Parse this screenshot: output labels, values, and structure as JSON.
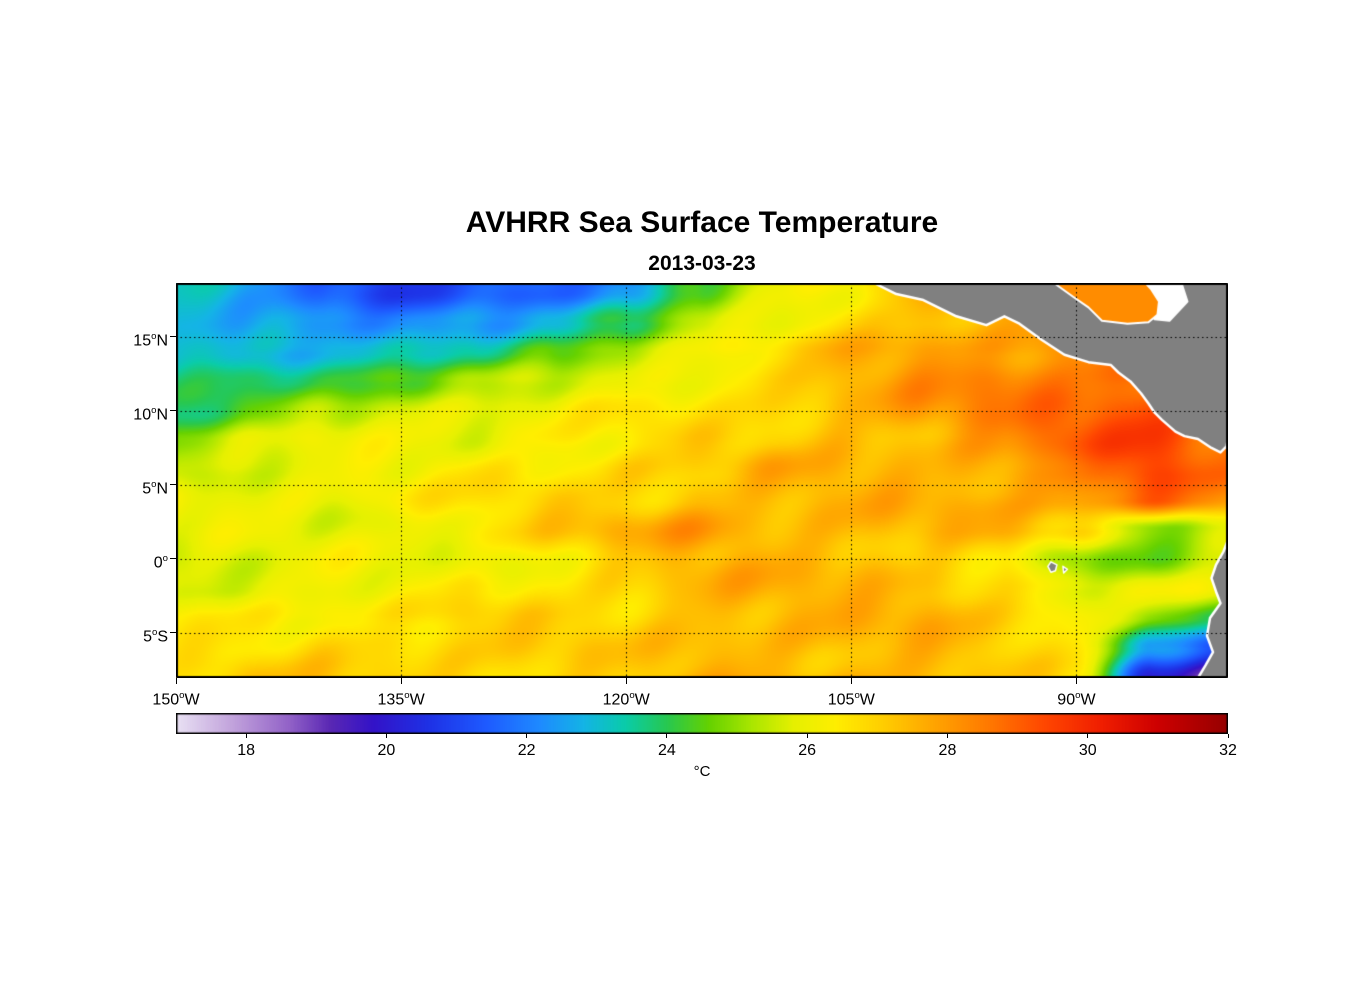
{
  "title": "AVHRR Sea Surface Temperature",
  "subtitle": "2013-03-23",
  "chart_data": {
    "type": "heatmap",
    "title": "AVHRR Sea Surface Temperature",
    "date": "2013-03-23",
    "degree_symbol": "o",
    "lon_range": [
      -150,
      -79.9
    ],
    "lat_range": [
      -8.05,
      18.65
    ],
    "x_ticks": [
      {
        "lon": -150,
        "deg": "150",
        "hemi": "W"
      },
      {
        "lon": -135,
        "deg": "135",
        "hemi": "W"
      },
      {
        "lon": -120,
        "deg": "120",
        "hemi": "W"
      },
      {
        "lon": -105,
        "deg": "105",
        "hemi": "W"
      },
      {
        "lon": -90,
        "deg": "90",
        "hemi": "W"
      }
    ],
    "y_ticks": [
      {
        "lat": 15,
        "deg": "15",
        "hemi": "N"
      },
      {
        "lat": 10,
        "deg": "10",
        "hemi": "N"
      },
      {
        "lat": 5,
        "deg": "5",
        "hemi": "N"
      },
      {
        "lat": 0,
        "deg": "0",
        "hemi": ""
      },
      {
        "lat": -5,
        "deg": "5",
        "hemi": "S"
      }
    ],
    "grid_lines": {
      "lons": [
        -135,
        -120,
        -105,
        -90
      ],
      "lats": [
        15,
        10,
        5,
        0,
        -5
      ]
    },
    "colorbar": {
      "min": 17,
      "max": 32,
      "ticks": [
        18,
        20,
        22,
        24,
        26,
        28,
        30,
        32
      ],
      "label": "°C"
    },
    "colormap_stops": [
      [
        17.0,
        "#E9E1F4"
      ],
      [
        17.8,
        "#C2A3DC"
      ],
      [
        18.6,
        "#9363C8"
      ],
      [
        19.2,
        "#5A28B4"
      ],
      [
        19.8,
        "#3413C8"
      ],
      [
        20.6,
        "#1E32E6"
      ],
      [
        21.4,
        "#1E5AFF"
      ],
      [
        22.2,
        "#1E8CFF"
      ],
      [
        22.8,
        "#14B4E6"
      ],
      [
        23.4,
        "#0ACCAA"
      ],
      [
        24.0,
        "#28C850"
      ],
      [
        24.6,
        "#66D200"
      ],
      [
        25.2,
        "#AAE600"
      ],
      [
        25.8,
        "#E6F000"
      ],
      [
        26.4,
        "#FFEE00"
      ],
      [
        27.0,
        "#FFD200"
      ],
      [
        27.8,
        "#FFA500"
      ],
      [
        28.6,
        "#FF7800"
      ],
      [
        29.4,
        "#FF4600"
      ],
      [
        30.2,
        "#F01E00"
      ],
      [
        31.0,
        "#CD0000"
      ],
      [
        32.0,
        "#960000"
      ]
    ],
    "land_color": "#808080",
    "coast_color": "#FFFFFF",
    "grid": {
      "lons": [
        -150,
        -145,
        -140,
        -135,
        -130,
        -125,
        -120,
        -115,
        -110,
        -105,
        -100,
        -95,
        -90,
        -85,
        -80
      ],
      "lats": [
        18,
        16,
        14,
        12,
        10,
        8,
        6,
        4,
        2,
        0,
        -2,
        -4,
        -6,
        -8
      ],
      "sst": [
        [
          23,
          22.5,
          21.5,
          21,
          21.5,
          21.5,
          22,
          24.5,
          26,
          26.5,
          27.5,
          28,
          28,
          28,
          28
        ],
        [
          23,
          22.5,
          22,
          22,
          22.5,
          23,
          24,
          25.5,
          26,
          27,
          27.5,
          27.5,
          28,
          28,
          28
        ],
        [
          23.5,
          23,
          23,
          23,
          23.5,
          24.5,
          25.5,
          26,
          26.5,
          27.5,
          28,
          28,
          28.5,
          28.5,
          28
        ],
        [
          23.5,
          24,
          24,
          24.5,
          25,
          25.5,
          26,
          26.5,
          27,
          27.5,
          28,
          28.5,
          28.5,
          29,
          28.5
        ],
        [
          23.5,
          24.5,
          25.5,
          26,
          26,
          26,
          26.5,
          26.5,
          27,
          27.5,
          28,
          28.5,
          29,
          29.5,
          29
        ],
        [
          25,
          25.5,
          26,
          26,
          26,
          26.5,
          26.5,
          27,
          27,
          27.5,
          27.5,
          28,
          29,
          29.5,
          28.5
        ],
        [
          25.5,
          26,
          26,
          26,
          26.5,
          26.5,
          27,
          27,
          27.5,
          27.5,
          27.5,
          28,
          28.5,
          29.5,
          28.5
        ],
        [
          26,
          26,
          26,
          26.5,
          26.5,
          27,
          27,
          27.5,
          27.5,
          27.5,
          27.5,
          27.5,
          28,
          29,
          28
        ],
        [
          26,
          26,
          26,
          26,
          26.5,
          27,
          27.5,
          28,
          27.5,
          27.5,
          27.5,
          27.5,
          27,
          25,
          26
        ],
        [
          25.5,
          25.5,
          26,
          26,
          26,
          26.5,
          27,
          27.5,
          27.5,
          27.5,
          27,
          26.5,
          24.5,
          24.5,
          25.5
        ],
        [
          26,
          26,
          26,
          26,
          26.5,
          26.5,
          27,
          27.5,
          27.5,
          27.5,
          27.5,
          27,
          26,
          26,
          26
        ],
        [
          26.5,
          26.5,
          26.5,
          26.5,
          27,
          27,
          27,
          27.5,
          27.5,
          27.5,
          27.5,
          27,
          26.5,
          25,
          24
        ],
        [
          26.5,
          26.5,
          27,
          27,
          27,
          27,
          27,
          27.5,
          27.5,
          27.5,
          27.5,
          27,
          26.5,
          23,
          21
        ],
        [
          26.5,
          27,
          27,
          27,
          27,
          27,
          27,
          27.5,
          27.5,
          27.5,
          27.5,
          27,
          26.5,
          20,
          18.5
        ]
      ]
    },
    "land": {
      "mexico_central_america": [
        [
          -103.5,
          18.65
        ],
        [
          -102,
          17.9
        ],
        [
          -100.2,
          17.5
        ],
        [
          -98,
          16.4
        ],
        [
          -96,
          15.8
        ],
        [
          -94.8,
          16.4
        ],
        [
          -93.8,
          15.9
        ],
        [
          -92.3,
          14.8
        ],
        [
          -90.8,
          13.8
        ],
        [
          -89.2,
          13.3
        ],
        [
          -87.7,
          13.1
        ],
        [
          -87.2,
          12.6
        ],
        [
          -86.4,
          12
        ],
        [
          -85.7,
          11.2
        ],
        [
          -85.2,
          10.5
        ],
        [
          -84.8,
          9.9
        ],
        [
          -84.3,
          9.4
        ],
        [
          -83.4,
          8.6
        ],
        [
          -82.8,
          8.3
        ],
        [
          -81.9,
          8.1
        ],
        [
          -81,
          7.5
        ],
        [
          -80.4,
          7.2
        ],
        [
          -80,
          7.6
        ],
        [
          -79.9,
          8.2
        ],
        [
          -79.9,
          18.65
        ]
      ],
      "caribbean_white_patch": [
        [
          -85.4,
          18.65
        ],
        [
          -83,
          18.65
        ],
        [
          -82.6,
          17.4
        ],
        [
          -83.8,
          16.1
        ],
        [
          -84.8,
          16.2
        ],
        [
          -84.6,
          16.5
        ],
        [
          -84.5,
          17.4
        ],
        [
          -85,
          18.2
        ]
      ],
      "caribbean_water_patch": [
        [
          -91.5,
          18.65
        ],
        [
          -90.2,
          17.7
        ],
        [
          -89.2,
          17
        ],
        [
          -88.3,
          16.1
        ],
        [
          -86.6,
          15.9
        ],
        [
          -85.2,
          16
        ],
        [
          -84.6,
          16.5
        ],
        [
          -84.5,
          17.4
        ],
        [
          -85,
          18.2
        ],
        [
          -85.4,
          18.65
        ]
      ],
      "south_america": [
        [
          -79.9,
          1.3
        ],
        [
          -80.2,
          0.5
        ],
        [
          -80.7,
          -0.4
        ],
        [
          -81,
          -1.3
        ],
        [
          -80.7,
          -2.2
        ],
        [
          -80.4,
          -3
        ],
        [
          -81.1,
          -4
        ],
        [
          -81.3,
          -5.2
        ],
        [
          -80.9,
          -6.3
        ],
        [
          -81.4,
          -7.2
        ],
        [
          -81.9,
          -8.05
        ],
        [
          -79.9,
          -8.05
        ]
      ],
      "galapagos": [
        [
          [
            -91.7,
            -0.2
          ],
          [
            -91.3,
            -0.4
          ],
          [
            -91.4,
            -0.8
          ],
          [
            -91.7,
            -0.9
          ],
          [
            -91.9,
            -0.5
          ]
        ],
        [
          [
            -90.9,
            -0.5
          ],
          [
            -90.6,
            -0.7
          ],
          [
            -90.85,
            -0.95
          ]
        ]
      ]
    }
  }
}
